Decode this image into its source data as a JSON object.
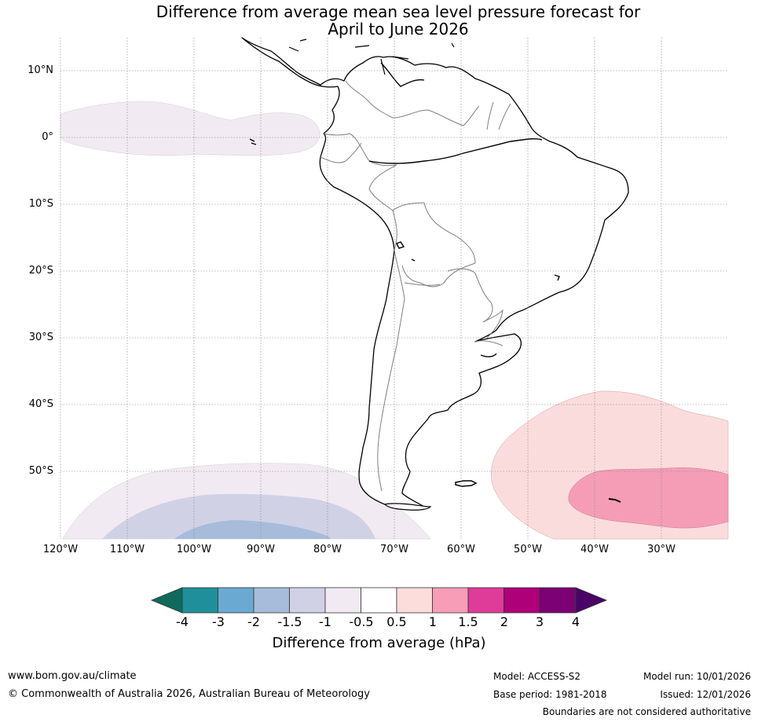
{
  "title": {
    "line1": "Difference from average mean sea level pressure forecast for",
    "line2": "April to June 2026"
  },
  "map": {
    "lat_labels": [
      "10°N",
      "0°",
      "10°S",
      "20°S",
      "30°S",
      "40°S",
      "50°S"
    ],
    "lon_labels": [
      "120°W",
      "110°W",
      "100°W",
      "90°W",
      "80°W",
      "70°W",
      "60°W",
      "50°W",
      "40°W",
      "30°W"
    ],
    "anomaly_regions": [
      {
        "name": "Eastern tropical Pacific",
        "category": "-0.5 to -1",
        "color": "#f2eaf2"
      },
      {
        "name": "Southeast Pacific outer",
        "category": "-0.5 to -1",
        "color": "#f2eaf2"
      },
      {
        "name": "Southeast Pacific middle",
        "category": "-1 to -1.5",
        "color": "#d1d1e6"
      },
      {
        "name": "Southeast Pacific core",
        "category": "-1.5 to -2",
        "color": "#a7bcdb"
      },
      {
        "name": "South Atlantic outer",
        "category": "0.5 to 1",
        "color": "#fbdcdc"
      },
      {
        "name": "South Atlantic core",
        "category": "1 to 1.5",
        "color": "#f59db7"
      }
    ]
  },
  "colorbar": {
    "ticks": [
      "-4",
      "-3",
      "-2",
      "-1.5",
      "-1",
      "-0.5",
      "0.5",
      "1",
      "1.5",
      "2",
      "3",
      "4"
    ],
    "colors": {
      "below_min": "#0f6a5c",
      "bins": [
        "#1f9099",
        "#6aaad2",
        "#a7bcdb",
        "#d1d1e6",
        "#f2eaf2",
        "#ffffff",
        "#fddcdc",
        "#f79db8",
        "#df3b98",
        "#ad0079",
        "#7b0175"
      ],
      "above_max": "#4a0468"
    },
    "label": "Difference from average (hPa)"
  },
  "footer": {
    "website": "www.bom.gov.au/climate",
    "copyright": "© Commonwealth of Australia 2026, Australian Bureau of Meteorology",
    "model": "Model: ACCESS-S2",
    "base_period": "Base period: 1981-2018",
    "model_run": "Model run: 10/01/2026",
    "issued": "Issued: 12/01/2026",
    "disclaimer": "Boundaries are not considered authoritative"
  }
}
